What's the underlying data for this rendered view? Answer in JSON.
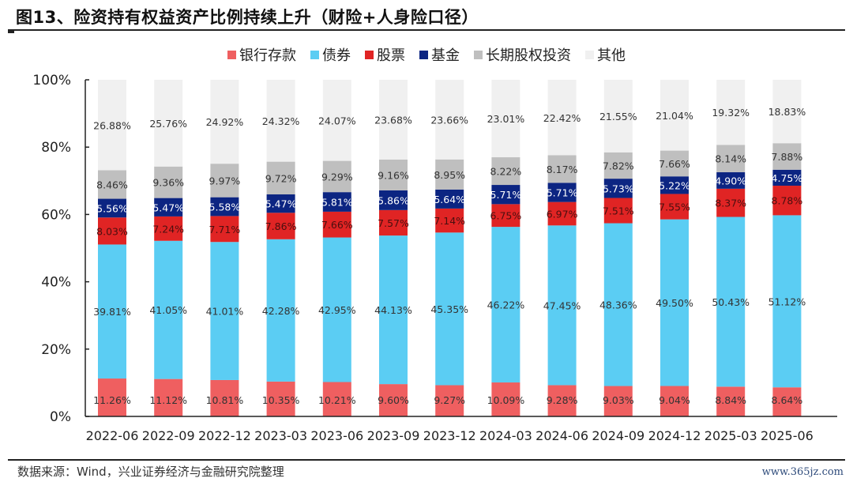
{
  "header": {
    "title": "图13、险资持有权益资产比例持续上升（财险+人身险口径）"
  },
  "footer": {
    "source": "数据来源：Wind，兴业证券经济与金融研究院整理",
    "watermark": "www.365jz.com"
  },
  "chart_data": {
    "type": "bar",
    "stacked": true,
    "title": "险资持有权益资产比例持续上升（财险+人身险口径）",
    "xlabel": "",
    "ylabel": "",
    "ylim": [
      0,
      100
    ],
    "yticks": [
      "0%",
      "20%",
      "40%",
      "60%",
      "80%",
      "100%"
    ],
    "ytick_values": [
      0,
      20,
      40,
      60,
      80,
      100
    ],
    "grid": false,
    "legend_position": "top-center",
    "categories": [
      "2022-06",
      "2022-09",
      "2022-12",
      "2023-03",
      "2023-06",
      "2023-09",
      "2023-12",
      "2024-03",
      "2024-06",
      "2024-09",
      "2024-12",
      "2025-03",
      "2025-06"
    ],
    "series": [
      {
        "name": "银行存款",
        "color": "#EF5F60",
        "label_color": "#333333",
        "values": [
          11.26,
          11.12,
          10.81,
          10.35,
          10.21,
          9.6,
          9.27,
          10.09,
          9.28,
          9.03,
          9.04,
          8.84,
          8.64
        ]
      },
      {
        "name": "债券",
        "color": "#5BCDF3",
        "label_color": "#333333",
        "values": [
          39.81,
          41.05,
          41.01,
          42.28,
          42.95,
          44.13,
          45.35,
          46.22,
          47.45,
          48.36,
          49.5,
          50.43,
          51.12
        ]
      },
      {
        "name": "股票",
        "color": "#E02424",
        "label_color": "#4a0f0f",
        "values": [
          8.03,
          7.24,
          7.71,
          7.86,
          7.66,
          7.57,
          7.14,
          6.75,
          6.97,
          7.51,
          7.55,
          8.37,
          8.78
        ]
      },
      {
        "name": "基金",
        "color": "#0C2582",
        "label_color": "#ffffff",
        "values": [
          5.56,
          5.47,
          5.58,
          5.47,
          5.81,
          5.86,
          5.64,
          5.71,
          5.71,
          5.73,
          5.22,
          4.9,
          4.75
        ]
      },
      {
        "name": "长期股权投资",
        "color": "#BFBFBF",
        "label_color": "#333333",
        "values": [
          8.46,
          9.36,
          9.97,
          9.72,
          9.29,
          9.16,
          8.95,
          8.22,
          8.17,
          7.82,
          7.66,
          8.14,
          7.88
        ]
      },
      {
        "name": "其他",
        "color": "#F0F0F0",
        "label_color": "#333333",
        "values": [
          26.88,
          25.76,
          24.92,
          24.32,
          24.07,
          23.68,
          23.66,
          23.01,
          22.42,
          21.55,
          21.04,
          19.32,
          18.83
        ]
      }
    ]
  }
}
